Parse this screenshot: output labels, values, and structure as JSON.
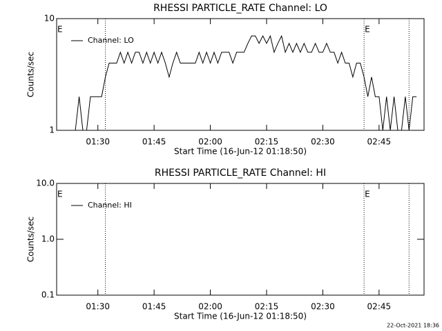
{
  "chart_data": [
    {
      "type": "line",
      "title": "RHESSI PARTICLE_RATE Channel: LO",
      "xlabel": "Start Time (16-Jun-12 01:18:50)",
      "ylabel": "Counts/sec",
      "log_y": true,
      "xlim": [
        "01:19",
        "02:57"
      ],
      "xticks": [
        "01:30",
        "01:45",
        "02:00",
        "02:15",
        "02:30",
        "02:45"
      ],
      "ylim": [
        1,
        10
      ],
      "yticks": [
        1,
        10
      ],
      "vlines": [
        "01:32",
        "02:41",
        "02:53"
      ],
      "annotations": [
        {
          "text": "E",
          "x": "01:19"
        },
        {
          "text": "E",
          "x": "02:41"
        }
      ],
      "legend": "upper left",
      "x": [
        "01:24",
        "01:25",
        "01:26",
        "01:27",
        "01:28",
        "01:29",
        "01:30",
        "01:31",
        "01:32",
        "01:33",
        "01:34",
        "01:35",
        "01:36",
        "01:37",
        "01:38",
        "01:39",
        "01:40",
        "01:41",
        "01:42",
        "01:43",
        "01:44",
        "01:45",
        "01:46",
        "01:47",
        "01:48",
        "01:49",
        "01:50",
        "01:51",
        "01:52",
        "01:53",
        "01:54",
        "01:55",
        "01:56",
        "01:57",
        "01:58",
        "01:59",
        "02:00",
        "02:01",
        "02:02",
        "02:03",
        "02:04",
        "02:05",
        "02:06",
        "02:07",
        "02:08",
        "02:09",
        "02:10",
        "02:11",
        "02:12",
        "02:13",
        "02:14",
        "02:15",
        "02:16",
        "02:17",
        "02:18",
        "02:19",
        "02:20",
        "02:21",
        "02:22",
        "02:23",
        "02:24",
        "02:25",
        "02:26",
        "02:27",
        "02:28",
        "02:29",
        "02:30",
        "02:31",
        "02:32",
        "02:33",
        "02:34",
        "02:35",
        "02:36",
        "02:37",
        "02:38",
        "02:39",
        "02:40",
        "02:41",
        "02:42",
        "02:43",
        "02:44",
        "02:45",
        "02:46",
        "02:47",
        "02:48",
        "02:49",
        "02:50",
        "02:51",
        "02:52",
        "02:53",
        "02:54",
        "02:55"
      ],
      "series": [
        {
          "name": "Channel: LO",
          "color": "#000000",
          "values": [
            1,
            2,
            1,
            1,
            2,
            2,
            2,
            2,
            3,
            4,
            4,
            4,
            5,
            4,
            5,
            4,
            5,
            5,
            4,
            5,
            4,
            5,
            4,
            5,
            4,
            3,
            4,
            5,
            4,
            4,
            4,
            4,
            4,
            5,
            4,
            5,
            4,
            5,
            4,
            5,
            5,
            5,
            4,
            5,
            5,
            5,
            6,
            7,
            7,
            6,
            7,
            6,
            7,
            5,
            6,
            7,
            5,
            6,
            5,
            6,
            5,
            6,
            5,
            5,
            6,
            5,
            5,
            6,
            5,
            5,
            4,
            5,
            4,
            4,
            3,
            4,
            4,
            3,
            2,
            3,
            2,
            2,
            1,
            2,
            1,
            2,
            1,
            1,
            2,
            1,
            2,
            2
          ]
        }
      ]
    },
    {
      "type": "line",
      "title": "RHESSI PARTICLE_RATE Channel: HI",
      "xlabel": "Start Time (16-Jun-12 01:18:50)",
      "ylabel": "Counts/sec",
      "log_y": true,
      "xlim": [
        "01:19",
        "02:57"
      ],
      "xticks": [
        "01:30",
        "01:45",
        "02:00",
        "02:15",
        "02:30",
        "02:45"
      ],
      "ylim": [
        0.1,
        10
      ],
      "yticks": [
        0.1,
        {
          "value": 1,
          "label": "1.0"
        },
        {
          "value": 10,
          "label": "10.0"
        }
      ],
      "vlines": [
        "01:32",
        "02:41",
        "02:53"
      ],
      "annotations": [
        {
          "text": "E",
          "x": "01:19"
        },
        {
          "text": "E",
          "x": "02:41"
        }
      ],
      "legend": "upper left",
      "x": [],
      "series": [
        {
          "name": "Channel: HI",
          "color": "#000000",
          "values": []
        }
      ]
    }
  ],
  "footer": "22-Oct-2021 18:36"
}
